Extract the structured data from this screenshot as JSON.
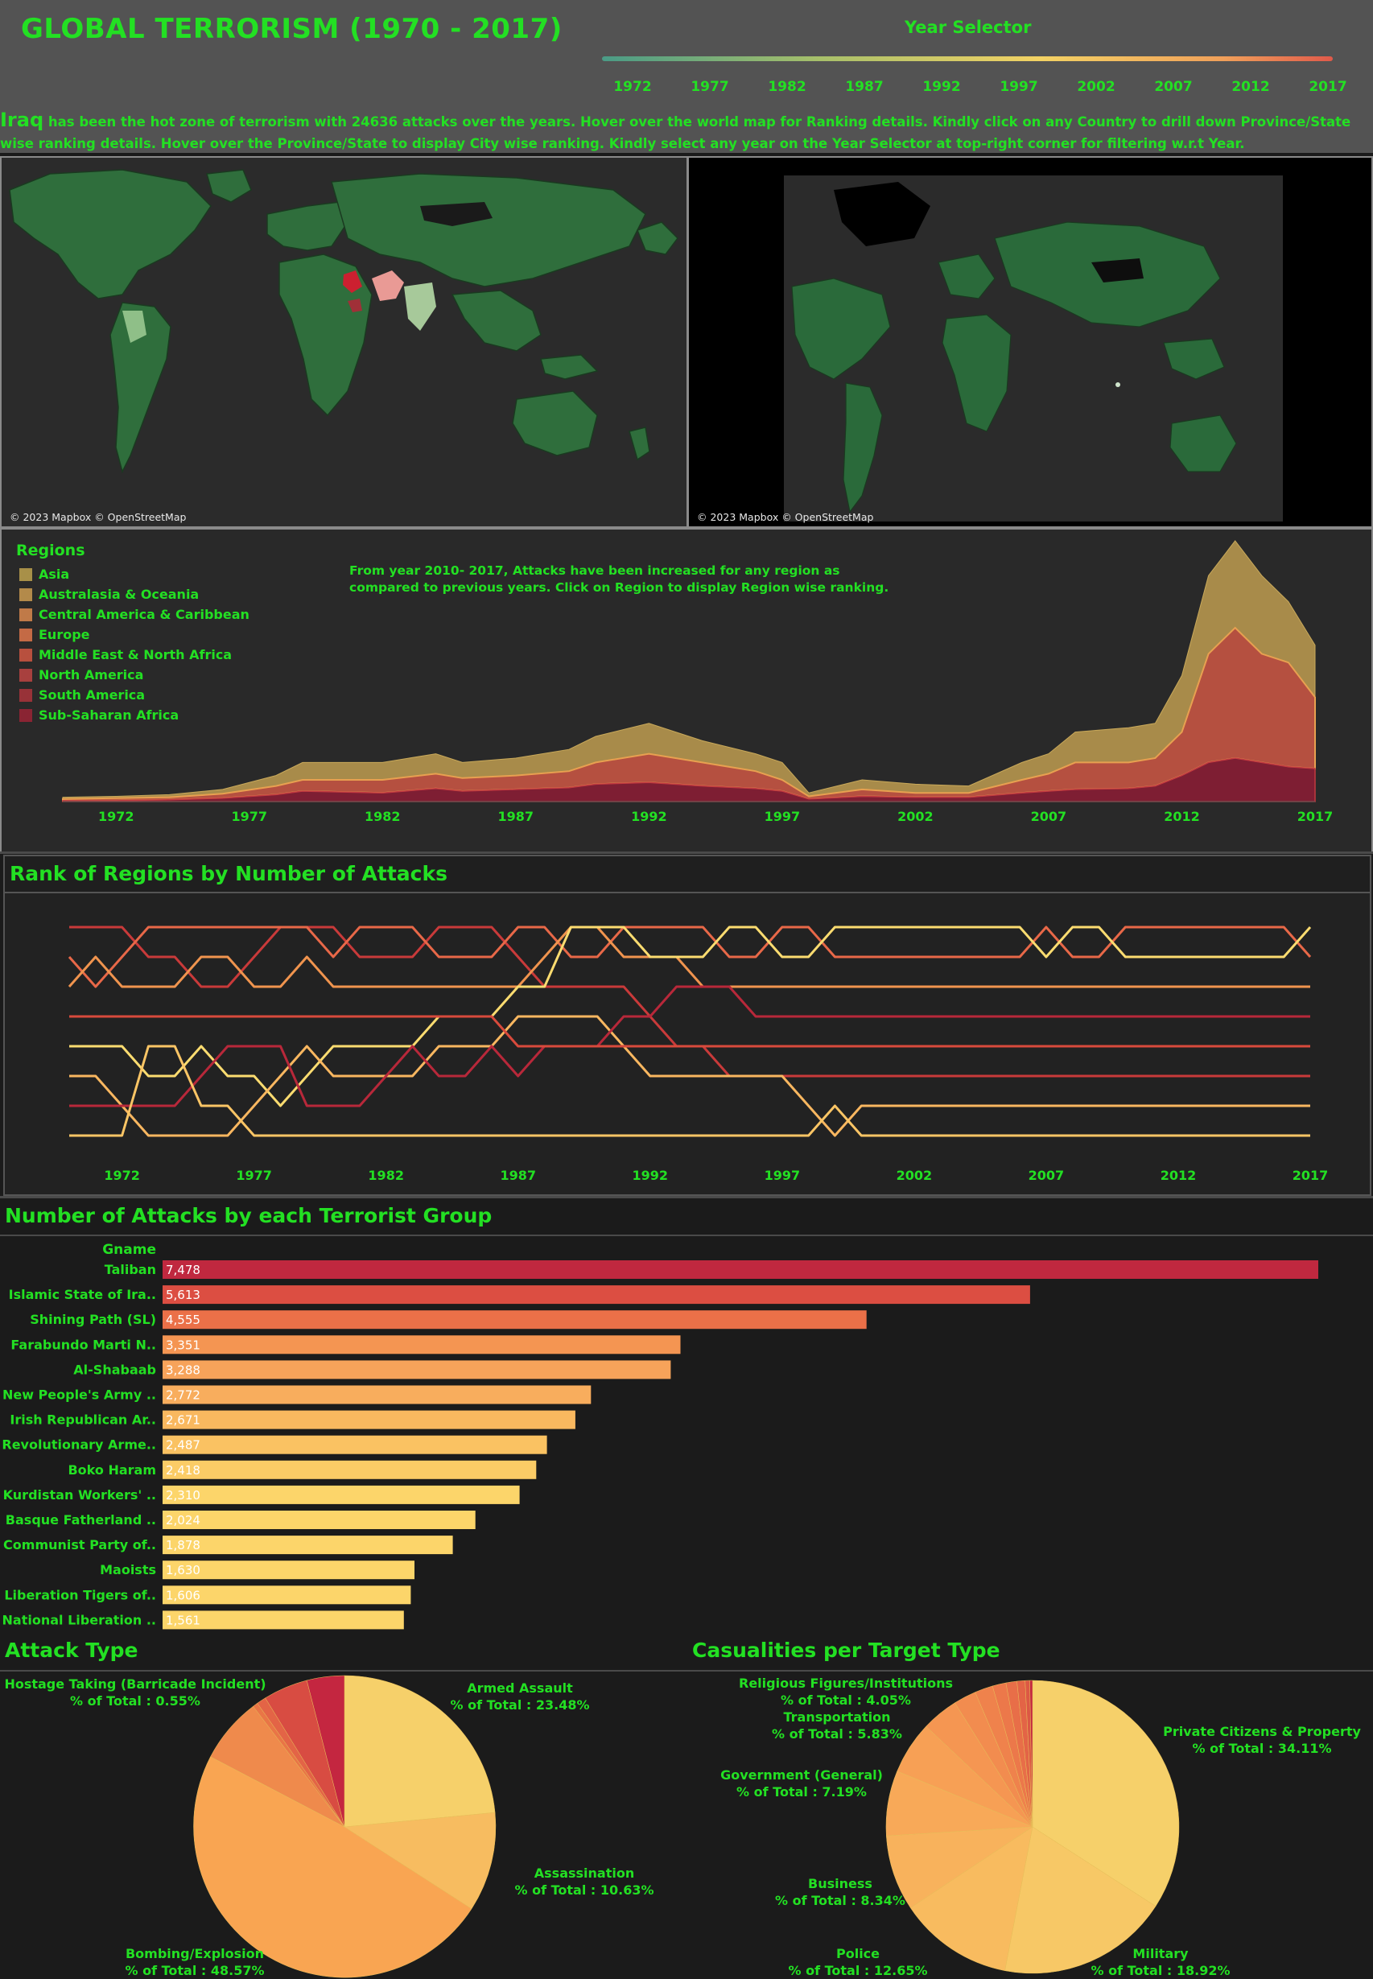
{
  "header": {
    "title": "GLOBAL TERRORISM (1970 - 2017)",
    "year_selector_label": "Year Selector",
    "year_selector_years": [
      "1972",
      "1977",
      "1982",
      "1987",
      "1992",
      "1997",
      "2002",
      "2007",
      "2012",
      "2017"
    ]
  },
  "description": {
    "highlight": "Iraq",
    "text": " has been the hot zone of terrorism with 24636 attacks over the years. Hover over the world map for Ranking details. Kindly click on any Country to drill down Province/State wise ranking details. Hover over the Province/State to display City wise ranking. Kindly select any year on the Year Selector at top-right corner for filtering w.r.t Year."
  },
  "maps": {
    "credit_left": "© 2023 Mapbox © OpenStreetMap",
    "credit_right": "© 2023 Mapbox © OpenStreetMap"
  },
  "colors": {
    "region_palette": [
      "#a89048",
      "#b38a4a",
      "#c07a48",
      "#c46a45",
      "#b8503e",
      "#a8403e",
      "#983238",
      "#8a2433"
    ],
    "bar_palette": [
      "#c0283f",
      "#dc4e42",
      "#eb7048",
      "#f49552",
      "#f7a35a",
      "#f8ad5d",
      "#f9b85f",
      "#fac262",
      "#fbcc66",
      "#fcd56a"
    ]
  },
  "regions_legend": {
    "title": "Regions",
    "items": [
      "Asia",
      "Australasia & Oceania",
      "Central America & Caribbean",
      "Europe",
      "Middle East & North Africa",
      "North America",
      "South America",
      "Sub-Saharan Africa"
    ],
    "note_line1": "From year 2010- 2017, Attacks have been increased for any region as",
    "note_line2": "compared to previous years. Click on Region to display Region wise ranking."
  },
  "rank_section": {
    "title": "Rank of Regions by Number of Attacks"
  },
  "groups_section": {
    "title": "Number of Attacks by each Terrorist Group",
    "column_header": "Gname"
  },
  "attack_type_section": {
    "title": "Attack Type"
  },
  "target_section": {
    "title": "Casualities per Target Type"
  },
  "chart_data": [
    {
      "type": "area",
      "title": "Regions",
      "x_ticks": [
        "1972",
        "1977",
        "1982",
        "1987",
        "1992",
        "1997",
        "2002",
        "2007",
        "2012",
        "2017"
      ],
      "x": [
        1970,
        1972,
        1974,
        1976,
        1978,
        1979,
        1982,
        1984,
        1985,
        1987,
        1989,
        1990,
        1992,
        1994,
        1996,
        1997,
        1998,
        2000,
        2002,
        2004,
        2006,
        2007,
        2008,
        2010,
        2011,
        2012,
        2013,
        2014,
        2015,
        2016,
        2017
      ],
      "series_note": "stacked cumulative totals (relative units)",
      "total": [
        5,
        6,
        8,
        14,
        30,
        45,
        45,
        55,
        45,
        50,
        60,
        75,
        90,
        70,
        55,
        45,
        10,
        25,
        20,
        18,
        45,
        55,
        80,
        85,
        90,
        145,
        260,
        300,
        260,
        230,
        180
      ],
      "mid": [
        3,
        4,
        5,
        9,
        18,
        25,
        25,
        32,
        27,
        30,
        35,
        45,
        55,
        45,
        35,
        25,
        6,
        14,
        10,
        10,
        25,
        32,
        45,
        45,
        50,
        80,
        170,
        200,
        170,
        160,
        120
      ],
      "low": [
        1,
        1,
        2,
        4,
        8,
        12,
        10,
        15,
        12,
        14,
        16,
        20,
        22,
        18,
        15,
        12,
        3,
        6,
        5,
        5,
        10,
        12,
        14,
        15,
        18,
        30,
        45,
        50,
        45,
        40,
        38
      ],
      "xlim": [
        1970,
        2017
      ]
    },
    {
      "type": "line",
      "title": "Rank of Regions by Number of Attacks",
      "x_ticks": [
        "1972",
        "1977",
        "1982",
        "1987",
        "1992",
        "1997",
        "2002",
        "2007",
        "2012",
        "2017"
      ],
      "x": [
        1970,
        1971,
        1972,
        1973,
        1974,
        1975,
        1976,
        1977,
        1978,
        1979,
        1980,
        1981,
        1982,
        1983,
        1984,
        1985,
        1986,
        1987,
        1988,
        1989,
        1990,
        1991,
        1992,
        1993,
        1994,
        1995,
        1996,
        1997,
        1998,
        1999,
        2000,
        2001,
        2002,
        2003,
        2004,
        2005,
        2006,
        2007,
        2008,
        2009,
        2010,
        2011,
        2012,
        2013,
        2014,
        2015,
        2016,
        2017
      ],
      "series": [
        {
          "color": "#c93a3a",
          "values": [
            1,
            1,
            1,
            2,
            2,
            3,
            3,
            2,
            1,
            1,
            1,
            2,
            2,
            2,
            1,
            1,
            1,
            2,
            3,
            3,
            3,
            3,
            4,
            5,
            5,
            6,
            6,
            6,
            6,
            6,
            6,
            6,
            6,
            6,
            6,
            6,
            6,
            6,
            6,
            6,
            6,
            6,
            6,
            6,
            6,
            6,
            6,
            6
          ]
        },
        {
          "color": "#e86848",
          "values": [
            2,
            3,
            2,
            1,
            1,
            1,
            1,
            1,
            1,
            1,
            2,
            1,
            1,
            1,
            2,
            2,
            2,
            1,
            1,
            2,
            2,
            1,
            1,
            1,
            1,
            2,
            2,
            1,
            1,
            2,
            2,
            2,
            2,
            2,
            2,
            2,
            2,
            1,
            2,
            2,
            1,
            1,
            1,
            1,
            1,
            1,
            1,
            2
          ]
        },
        {
          "color": "#f0944e",
          "values": [
            3,
            2,
            3,
            3,
            3,
            2,
            2,
            3,
            3,
            2,
            3,
            3,
            3,
            3,
            3,
            3,
            3,
            3,
            2,
            1,
            1,
            2,
            2,
            2,
            3,
            3,
            3,
            3,
            3,
            3,
            3,
            3,
            3,
            3,
            3,
            3,
            3,
            3,
            3,
            3,
            3,
            3,
            3,
            3,
            3,
            3,
            3,
            3
          ]
        },
        {
          "color": "#fcdc70",
          "values": [
            5,
            5,
            5,
            6,
            6,
            5,
            6,
            6,
            7,
            6,
            5,
            5,
            5,
            5,
            4,
            4,
            4,
            3,
            3,
            1,
            1,
            1,
            2,
            2,
            2,
            1,
            1,
            2,
            2,
            1,
            1,
            1,
            1,
            1,
            1,
            1,
            1,
            2,
            1,
            1,
            2,
            2,
            2,
            2,
            2,
            2,
            2,
            1
          ]
        },
        {
          "color": "#f9b760",
          "values": [
            6,
            6,
            7,
            8,
            8,
            8,
            8,
            7,
            6,
            5,
            6,
            6,
            6,
            6,
            5,
            5,
            5,
            4,
            4,
            4,
            4,
            5,
            6,
            6,
            6,
            6,
            6,
            6,
            7,
            8,
            7,
            7,
            7,
            7,
            7,
            7,
            7,
            7,
            7,
            7,
            7,
            7,
            7,
            7,
            7,
            7,
            7,
            7
          ]
        },
        {
          "color": "#b8283a",
          "values": [
            7,
            7,
            7,
            7,
            7,
            6,
            5,
            5,
            5,
            7,
            7,
            7,
            6,
            5,
            6,
            6,
            5,
            6,
            5,
            5,
            5,
            4,
            4,
            3,
            3,
            3,
            4,
            4,
            4,
            4,
            4,
            4,
            4,
            4,
            4,
            4,
            4,
            4,
            4,
            4,
            4,
            4,
            4,
            4,
            4,
            4,
            4,
            4
          ]
        },
        {
          "color": "#d84a3c",
          "values": [
            4,
            4,
            4,
            4,
            4,
            4,
            4,
            4,
            4,
            4,
            4,
            4,
            4,
            4,
            4,
            4,
            4,
            5,
            5,
            5,
            5,
            5,
            5,
            5,
            5,
            5,
            5,
            5,
            5,
            5,
            5,
            5,
            5,
            5,
            5,
            5,
            5,
            5,
            5,
            5,
            5,
            5,
            5,
            5,
            5,
            5,
            5,
            5
          ]
        },
        {
          "color": "#fbc565",
          "values": [
            8,
            8,
            8,
            5,
            5,
            7,
            7,
            8,
            8,
            8,
            8,
            8,
            8,
            8,
            8,
            8,
            8,
            8,
            8,
            8,
            8,
            8,
            8,
            8,
            8,
            8,
            8,
            8,
            8,
            7,
            8,
            8,
            8,
            8,
            8,
            8,
            8,
            8,
            8,
            8,
            8,
            8,
            8,
            8,
            8,
            8,
            8,
            8
          ]
        }
      ],
      "ylim": [
        1,
        8
      ]
    },
    {
      "type": "bar",
      "title": "Number of Attacks by each Terrorist Group",
      "categories": [
        "Taliban",
        "Islamic State of Ira..",
        "Shining Path (SL)",
        "Farabundo Marti N..",
        "Al-Shabaab",
        "New People's Army ..",
        "Irish Republican Ar..",
        "Revolutionary Arme..",
        "Boko Haram",
        "Kurdistan Workers' ..",
        "Basque Fatherland ..",
        "Communist Party of..",
        "Maoists",
        "Liberation Tigers of..",
        "National Liberation .."
      ],
      "values": [
        7478,
        5613,
        4555,
        3351,
        3288,
        2772,
        2671,
        2487,
        2418,
        2310,
        2024,
        1878,
        1630,
        1606,
        1561
      ],
      "labels": [
        "7,478",
        "5,613",
        "4,555",
        "3,351",
        "3,288",
        "2,772",
        "2,671",
        "2,487",
        "2,418",
        "2,310",
        "2,024",
        "1,878",
        "1,630",
        "1,606",
        "1,561"
      ]
    },
    {
      "type": "pie",
      "title": "Attack Type",
      "slices": [
        {
          "value": 23.48,
          "color": "#f6d06a"
        },
        {
          "value": 10.63,
          "color": "#f7bc60"
        },
        {
          "value": 48.57,
          "color": "#f9a552"
        },
        {
          "value": 7.0,
          "color": "#ef8a4c"
        },
        {
          "value": 0.55,
          "color": "#e97546"
        },
        {
          "value": 1.0,
          "color": "#e36446"
        },
        {
          "value": 4.77,
          "color": "#d84c42"
        },
        {
          "value": 4.0,
          "color": "#c42640"
        }
      ],
      "labels": [
        {
          "name": "Armed Assault",
          "pct": "% of Total  : 23.48%"
        },
        {
          "name": "Assassination",
          "pct": "% of Total  : 10.63%"
        },
        {
          "name": "Bombing/Explosion",
          "pct": "% of Total  : 48.57%"
        },
        {
          "name": "Hostage Taking (Barricade Incident)",
          "pct": "% of Total  : 0.55%"
        }
      ]
    },
    {
      "type": "pie",
      "title": "Casualities per Target Type",
      "slices": [
        {
          "value": 34.11,
          "color": "#f6d06a"
        },
        {
          "value": 18.92,
          "color": "#f7c866"
        },
        {
          "value": 12.65,
          "color": "#f8bb5f"
        },
        {
          "value": 8.34,
          "color": "#f8b25c"
        },
        {
          "value": 7.19,
          "color": "#f8a958"
        },
        {
          "value": 5.83,
          "color": "#f7a055"
        },
        {
          "value": 4.05,
          "color": "#f59652"
        },
        {
          "value": 2.5,
          "color": "#f28c4f"
        },
        {
          "value": 2.0,
          "color": "#ef824c"
        },
        {
          "value": 1.5,
          "color": "#ec784a"
        },
        {
          "value": 1.2,
          "color": "#e86e48"
        },
        {
          "value": 0.9,
          "color": "#e36446"
        },
        {
          "value": 0.5,
          "color": "#dc5844"
        },
        {
          "value": 0.31,
          "color": "#c42640"
        }
      ],
      "labels": [
        {
          "name": "Private Citizens & Property",
          "pct": "% of Total : 34.11%"
        },
        {
          "name": "Military",
          "pct": "% of Total : 18.92%"
        },
        {
          "name": "Police",
          "pct": "% of Total : 12.65%"
        },
        {
          "name": "Business",
          "pct": "% of Total : 8.34%"
        },
        {
          "name": "Government (General)",
          "pct": "% of Total : 7.19%"
        },
        {
          "name": "Transportation",
          "pct": "% of Total : 5.83%"
        },
        {
          "name": "Religious Figures/Institutions",
          "pct": "% of Total : 4.05%"
        }
      ]
    }
  ]
}
